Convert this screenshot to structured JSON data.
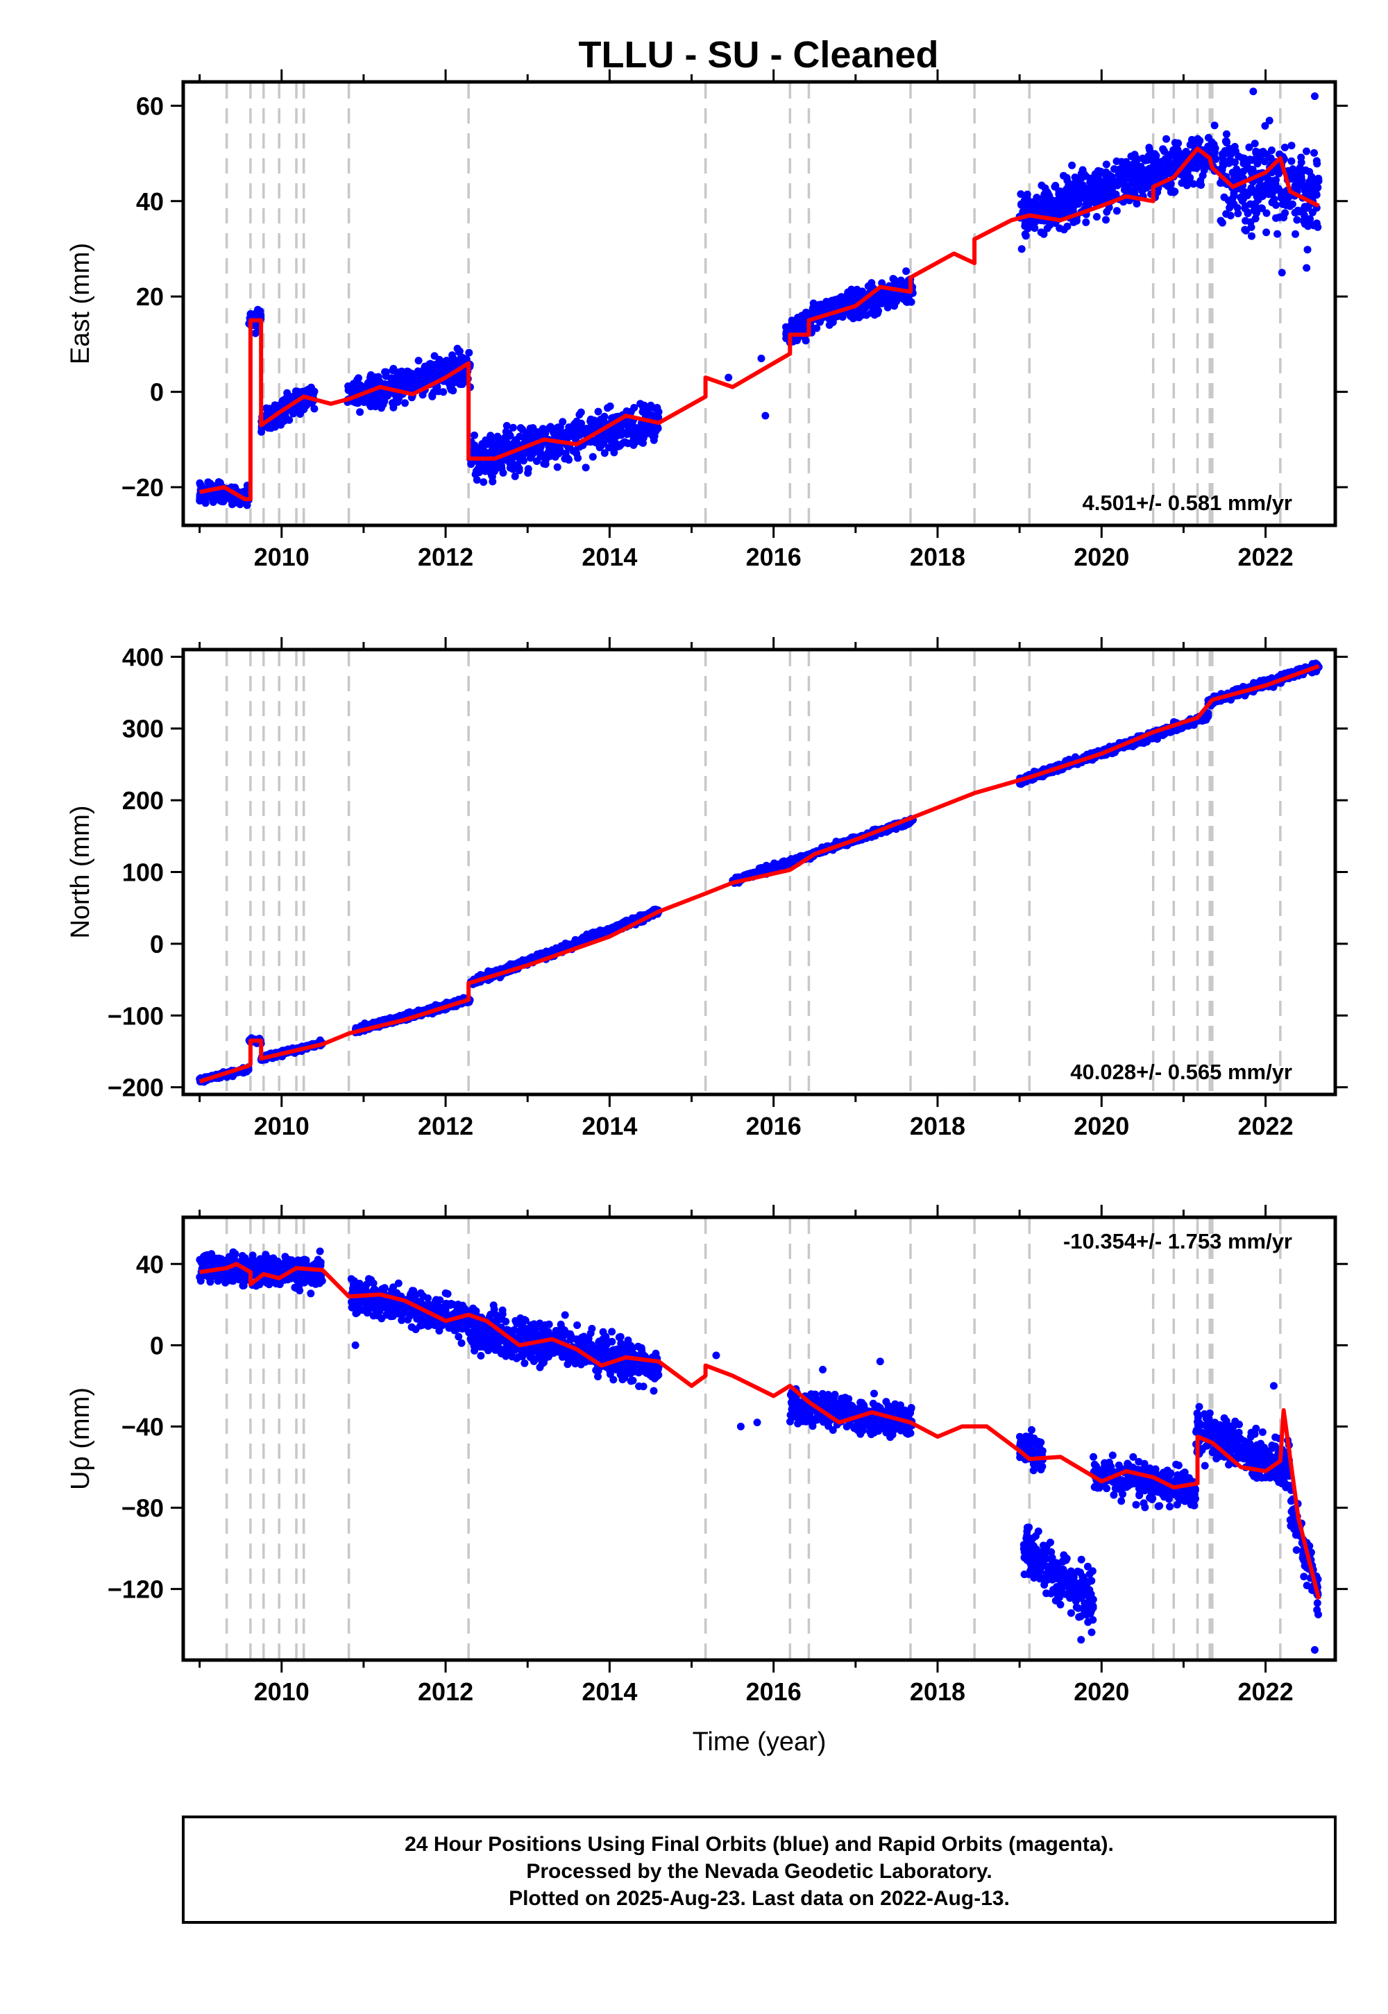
{
  "title": "TLLU  - SU - Cleaned",
  "caption": {
    "lines": [
      "24 Hour Positions Using Final Orbits (blue) and Rapid Orbits (magenta).",
      "Processed by the Nevada Geodetic Laboratory.",
      "Plotted on 2025-Aug-23. Last data on 2022-Aug-13."
    ]
  },
  "colors": {
    "points": "#0000ff",
    "model": "#ff0000",
    "steps": "#c8c8c8",
    "frame": "#000000"
  },
  "chart_data": [
    {
      "type": "scatter",
      "ylabel": "East (mm)",
      "xlabel": "",
      "rate_label": "4.501+/- 0.581 mm/yr",
      "xlim": [
        2008.8,
        2022.85
      ],
      "ylim": [
        -28,
        65
      ],
      "xticks": [
        2010,
        2012,
        2014,
        2016,
        2018,
        2020,
        2022
      ],
      "xtick_labels": [
        "2010",
        "2012",
        "2014",
        "2016",
        "2018",
        "2020",
        "2022"
      ],
      "yticks": [
        -20,
        0,
        20,
        40,
        60
      ],
      "ytick_labels": [
        "−20",
        "0",
        "20",
        "40",
        "60"
      ],
      "step_epochs": [
        2009.33,
        2009.62,
        2009.78,
        2009.97,
        2010.18,
        2010.27,
        2010.82,
        2012.28,
        2015.17,
        2016.2,
        2016.43,
        2017.67,
        2018.45,
        2019.12,
        2020.63,
        2020.88,
        2021.17,
        2021.32,
        2021.35,
        2022.18
      ],
      "data_segments": [
        {
          "x": [
            2009.0,
            2009.6
          ],
          "base": [
            -21,
            -22
          ],
          "sd": 1.5
        },
        {
          "x": [
            2009.6,
            2009.75
          ],
          "base": [
            15,
            16
          ],
          "sd": 1.5
        },
        {
          "x": [
            2009.75,
            2010.4
          ],
          "base": [
            -6,
            -1
          ],
          "sd": 2.0
        },
        {
          "x": [
            2010.8,
            2012.3
          ],
          "base": [
            -1,
            5
          ],
          "sd": 2.5
        },
        {
          "x": [
            2012.3,
            2014.6
          ],
          "base": [
            -14,
            -6
          ],
          "sd": 3.0
        },
        {
          "x": [
            2016.15,
            2016.45
          ],
          "base": [
            12,
            15
          ],
          "sd": 2.0
        },
        {
          "x": [
            2016.45,
            2017.7
          ],
          "base": [
            16,
            22
          ],
          "sd": 2.0
        },
        {
          "x": [
            2019.0,
            2021.4
          ],
          "base": [
            37,
            50
          ],
          "sd": 3.5
        },
        {
          "x": [
            2021.45,
            2022.65
          ],
          "base": [
            45,
            42
          ],
          "sd": 6.0
        }
      ],
      "outliers": [
        [
          2015.9,
          -5
        ],
        [
          2015.45,
          3
        ],
        [
          2015.85,
          7
        ],
        [
          2021.85,
          63
        ],
        [
          2022.6,
          62
        ],
        [
          2022.5,
          26
        ],
        [
          2022.2,
          25
        ]
      ],
      "model": [
        [
          2009.0,
          -21
        ],
        [
          2009.3,
          -20
        ],
        [
          2009.55,
          -22.5
        ],
        [
          2009.62,
          -22.5
        ],
        [
          2009.62,
          15
        ],
        [
          2009.75,
          15
        ],
        [
          2009.75,
          -7
        ],
        [
          2010.0,
          -4
        ],
        [
          2010.18,
          -2
        ],
        [
          2010.27,
          -1
        ],
        [
          2010.6,
          -2.5
        ],
        [
          2010.82,
          -1.5
        ],
        [
          2011.2,
          1
        ],
        [
          2011.6,
          -0.5
        ],
        [
          2012.0,
          3
        ],
        [
          2012.28,
          6
        ],
        [
          2012.28,
          -14
        ],
        [
          2012.6,
          -14
        ],
        [
          2013.2,
          -10
        ],
        [
          2013.6,
          -11
        ],
        [
          2014.2,
          -5
        ],
        [
          2014.6,
          -6.5
        ],
        [
          2015.17,
          -1
        ],
        [
          2015.17,
          3
        ],
        [
          2015.5,
          1
        ],
        [
          2016.2,
          8
        ],
        [
          2016.2,
          12
        ],
        [
          2016.43,
          12
        ],
        [
          2016.43,
          15
        ],
        [
          2017.0,
          18
        ],
        [
          2017.3,
          22
        ],
        [
          2017.67,
          21
        ],
        [
          2017.67,
          24
        ],
        [
          2018.2,
          29
        ],
        [
          2018.45,
          27
        ],
        [
          2018.45,
          32
        ],
        [
          2018.9,
          36
        ],
        [
          2019.12,
          37
        ],
        [
          2019.5,
          36
        ],
        [
          2020.0,
          39
        ],
        [
          2020.3,
          41
        ],
        [
          2020.63,
          40
        ],
        [
          2020.63,
          43
        ],
        [
          2020.88,
          45
        ],
        [
          2021.17,
          51
        ],
        [
          2021.32,
          49
        ],
        [
          2021.35,
          47
        ],
        [
          2021.6,
          43
        ],
        [
          2022.0,
          46
        ],
        [
          2022.18,
          49
        ],
        [
          2022.3,
          42
        ],
        [
          2022.65,
          39
        ]
      ]
    },
    {
      "type": "scatter",
      "ylabel": "North (mm)",
      "xlabel": "",
      "rate_label": "40.028+/- 0.565 mm/yr",
      "xlim": [
        2008.8,
        2022.85
      ],
      "ylim": [
        -210,
        410
      ],
      "xticks": [
        2010,
        2012,
        2014,
        2016,
        2018,
        2020,
        2022
      ],
      "xtick_labels": [
        "2010",
        "2012",
        "2014",
        "2016",
        "2018",
        "2020",
        "2022"
      ],
      "yticks": [
        -200,
        -100,
        0,
        100,
        200,
        300,
        400
      ],
      "ytick_labels": [
        "−200",
        "−100",
        "0",
        "100",
        "200",
        "300",
        "400"
      ],
      "step_epochs": [
        2009.33,
        2009.62,
        2009.78,
        2009.97,
        2010.18,
        2010.27,
        2010.82,
        2012.28,
        2015.17,
        2016.2,
        2016.43,
        2017.67,
        2018.45,
        2019.12,
        2020.63,
        2020.88,
        2021.17,
        2021.32,
        2021.35,
        2022.18
      ],
      "data_segments": [
        {
          "x": [
            2009.0,
            2009.6
          ],
          "base": [
            -190,
            -175
          ],
          "sd": 2.5
        },
        {
          "x": [
            2009.6,
            2009.75
          ],
          "base": [
            -135,
            -135
          ],
          "sd": 2.5
        },
        {
          "x": [
            2009.75,
            2010.5
          ],
          "base": [
            -160,
            -138
          ],
          "sd": 2.5
        },
        {
          "x": [
            2010.9,
            2012.3
          ],
          "base": [
            -120,
            -78
          ],
          "sd": 3.0
        },
        {
          "x": [
            2012.3,
            2014.6
          ],
          "base": [
            -55,
            45
          ],
          "sd": 3.5
        },
        {
          "x": [
            2015.5,
            2016.5
          ],
          "base": [
            87,
            125
          ],
          "sd": 3.0
        },
        {
          "x": [
            2016.5,
            2017.7
          ],
          "base": [
            127,
            172
          ],
          "sd": 3.0
        },
        {
          "x": [
            2019.0,
            2021.3
          ],
          "base": [
            227,
            317
          ],
          "sd": 3.5
        },
        {
          "x": [
            2021.3,
            2022.65
          ],
          "base": [
            337,
            387
          ],
          "sd": 4.0
        }
      ],
      "outliers": [],
      "model": [
        [
          2009.0,
          -192
        ],
        [
          2009.6,
          -170
        ],
        [
          2009.62,
          -168
        ],
        [
          2009.62,
          -135
        ],
        [
          2009.75,
          -135
        ],
        [
          2009.75,
          -160
        ],
        [
          2010.5,
          -140
        ],
        [
          2010.82,
          -125
        ],
        [
          2011.5,
          -106
        ],
        [
          2012.28,
          -78
        ],
        [
          2012.28,
          -55
        ],
        [
          2013.0,
          -30
        ],
        [
          2014.0,
          10
        ],
        [
          2014.6,
          45
        ],
        [
          2015.17,
          70
        ],
        [
          2015.5,
          85
        ],
        [
          2016.2,
          103
        ],
        [
          2016.5,
          125
        ],
        [
          2017.0,
          145
        ],
        [
          2017.67,
          175
        ],
        [
          2018.45,
          210
        ],
        [
          2019.12,
          232
        ],
        [
          2020.0,
          265
        ],
        [
          2020.63,
          295
        ],
        [
          2021.17,
          315
        ],
        [
          2021.35,
          340
        ],
        [
          2022.0,
          360
        ],
        [
          2022.65,
          387
        ]
      ]
    },
    {
      "type": "scatter",
      "ylabel": "Up (mm)",
      "xlabel": "Time (year)",
      "rate_label": "-10.354+/- 1.753 mm/yr",
      "xlim": [
        2008.8,
        2022.85
      ],
      "ylim": [
        -155,
        63
      ],
      "xticks": [
        2010,
        2012,
        2014,
        2016,
        2018,
        2020,
        2022
      ],
      "xtick_labels": [
        "2010",
        "2012",
        "2014",
        "2016",
        "2018",
        "2020",
        "2022"
      ],
      "yticks": [
        -120,
        -80,
        -40,
        0,
        40
      ],
      "ytick_labels": [
        "−120",
        "−80",
        "−40",
        "0",
        "40"
      ],
      "step_epochs": [
        2009.33,
        2009.62,
        2009.78,
        2009.97,
        2010.18,
        2010.27,
        2010.82,
        2012.28,
        2015.17,
        2016.2,
        2016.43,
        2017.67,
        2018.45,
        2019.12,
        2020.63,
        2020.88,
        2021.17,
        2021.32,
        2021.35,
        2022.18
      ],
      "data_segments": [
        {
          "x": [
            2009.0,
            2010.5
          ],
          "base": [
            38,
            36
          ],
          "sd": 5.0
        },
        {
          "x": [
            2010.85,
            2012.3
          ],
          "base": [
            25,
            12
          ],
          "sd": 6.0
        },
        {
          "x": [
            2012.3,
            2014.6
          ],
          "base": [
            8,
            -10
          ],
          "sd": 7.0
        },
        {
          "x": [
            2016.2,
            2017.7
          ],
          "base": [
            -30,
            -38
          ],
          "sd": 6.0
        },
        {
          "x": [
            2019.0,
            2019.3
          ],
          "base": [
            -50,
            -55
          ],
          "sd": 5.0
        },
        {
          "x": [
            2019.05,
            2019.9
          ],
          "base": [
            -100,
            -125
          ],
          "sd": 9.0
        },
        {
          "x": [
            2019.9,
            2021.15
          ],
          "base": [
            -63,
            -72
          ],
          "sd": 6.0
        },
        {
          "x": [
            2021.15,
            2022.3
          ],
          "base": [
            -42,
            -60
          ],
          "sd": 8.0
        },
        {
          "x": [
            2022.3,
            2022.65
          ],
          "base": [
            -80,
            -120
          ],
          "sd": 9.0
        }
      ],
      "outliers": [
        [
          2010.9,
          0
        ],
        [
          2015.3,
          -5
        ],
        [
          2015.8,
          -38
        ],
        [
          2015.6,
          -40
        ],
        [
          2016.6,
          -12
        ],
        [
          2017.3,
          -8
        ],
        [
          2022.1,
          -20
        ],
        [
          2022.6,
          -150
        ],
        [
          2019.75,
          -145
        ]
      ],
      "model": [
        [
          2009.0,
          36
        ],
        [
          2009.33,
          38
        ],
        [
          2009.45,
          40
        ],
        [
          2009.62,
          36
        ],
        [
          2009.62,
          30
        ],
        [
          2009.78,
          35
        ],
        [
          2009.97,
          33
        ],
        [
          2010.18,
          38
        ],
        [
          2010.5,
          37
        ],
        [
          2010.82,
          24
        ],
        [
          2011.2,
          25
        ],
        [
          2011.5,
          22
        ],
        [
          2012.0,
          12
        ],
        [
          2012.28,
          15
        ],
        [
          2012.5,
          12
        ],
        [
          2012.9,
          0
        ],
        [
          2013.3,
          3
        ],
        [
          2013.6,
          -2
        ],
        [
          2013.9,
          -10
        ],
        [
          2014.2,
          -6
        ],
        [
          2014.6,
          -8
        ],
        [
          2015.0,
          -20
        ],
        [
          2015.17,
          -15
        ],
        [
          2015.17,
          -10
        ],
        [
          2015.5,
          -15
        ],
        [
          2016.0,
          -25
        ],
        [
          2016.2,
          -20
        ],
        [
          2016.43,
          -28
        ],
        [
          2016.8,
          -38
        ],
        [
          2017.2,
          -33
        ],
        [
          2017.67,
          -38
        ],
        [
          2018.0,
          -45
        ],
        [
          2018.3,
          -40
        ],
        [
          2018.6,
          -40
        ],
        [
          2019.0,
          -52
        ],
        [
          2019.12,
          -56
        ],
        [
          2019.5,
          -55
        ],
        [
          2020.0,
          -67
        ],
        [
          2020.3,
          -62
        ],
        [
          2020.63,
          -65
        ],
        [
          2020.88,
          -70
        ],
        [
          2021.17,
          -68
        ],
        [
          2021.17,
          -45
        ],
        [
          2021.35,
          -48
        ],
        [
          2021.7,
          -60
        ],
        [
          2022.0,
          -62
        ],
        [
          2022.18,
          -57
        ],
        [
          2022.22,
          -32
        ],
        [
          2022.4,
          -85
        ],
        [
          2022.65,
          -125
        ]
      ]
    }
  ]
}
